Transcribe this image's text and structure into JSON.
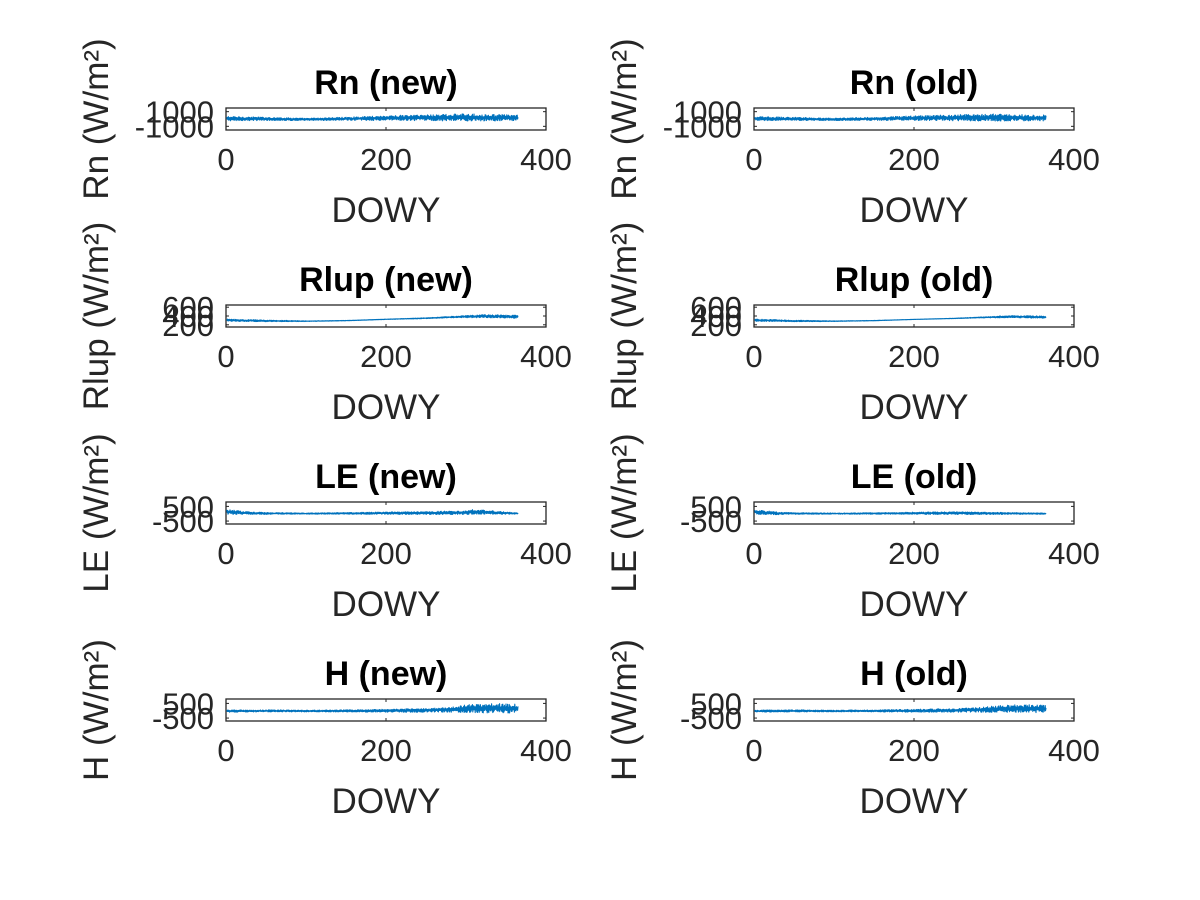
{
  "figure": {
    "background": "#ffffff",
    "line_color": "#0072bd"
  },
  "chart_data": [
    {
      "type": "line",
      "title": "Rn (new)",
      "xlabel": "DOWY",
      "ylabel": "Rn (W/m²)",
      "xlim": [
        0,
        400
      ],
      "xticks": [
        "0",
        "200",
        "400"
      ],
      "ylim": [
        -1500,
        1500
      ],
      "yticks": [
        {
          "v": -1000,
          "label": "-1000"
        },
        {
          "v": 1000,
          "label": "1000"
        }
      ],
      "series": [
        {
          "x": [
            1,
            365
          ],
          "envelope": {
            "day": [
              1,
              50,
              100,
              150,
              200,
              250,
              300,
              365
            ],
            "low": [
              -250,
              -200,
              -220,
              -180,
              -200,
              -250,
              -280,
              -250
            ],
            "high": [
              350,
              250,
              100,
              250,
              450,
              600,
              700,
              550
            ]
          }
        }
      ]
    },
    {
      "type": "line",
      "title": "Rn (old)",
      "xlabel": "DOWY",
      "ylabel": "Rn (W/m²)",
      "xlim": [
        0,
        400
      ],
      "xticks": [
        "0",
        "200",
        "400"
      ],
      "ylim": [
        -1500,
        1500
      ],
      "yticks": [
        {
          "v": -1000,
          "label": "-1000"
        },
        {
          "v": 1000,
          "label": "1000"
        }
      ],
      "series": [
        {
          "x": [
            1,
            365
          ],
          "envelope": {
            "day": [
              1,
              50,
              100,
              150,
              200,
              250,
              300,
              365
            ],
            "low": [
              -250,
              -200,
              -220,
              -180,
              -200,
              -250,
              -280,
              -250
            ],
            "high": [
              330,
              240,
              110,
              240,
              430,
              580,
              680,
              530
            ]
          }
        }
      ]
    },
    {
      "type": "line",
      "title": "Rlup (new)",
      "xlabel": "DOWY",
      "ylabel": "Rlup (W/m²)",
      "xlim": [
        0,
        400
      ],
      "xticks": [
        "0",
        "200",
        "400"
      ],
      "ylim": [
        150,
        650
      ],
      "yticks": [
        {
          "v": 200,
          "label": "200"
        },
        {
          "v": 400,
          "label": "400"
        },
        {
          "v": 600,
          "label": "600"
        }
      ],
      "series": [
        {
          "x": [
            1,
            365
          ],
          "envelope": {
            "day": [
              1,
              50,
              100,
              150,
              200,
              250,
              280,
              320,
              365
            ],
            "low": [
              280,
              270,
              275,
              290,
              320,
              340,
              360,
              360,
              350
            ],
            "high": [
              330,
              310,
              290,
              300,
              330,
              360,
              390,
              430,
              420
            ]
          }
        }
      ]
    },
    {
      "type": "line",
      "title": "Rlup (old)",
      "xlabel": "DOWY",
      "ylabel": "Rlup (W/m²)",
      "xlim": [
        0,
        400
      ],
      "xticks": [
        "0",
        "200",
        "400"
      ],
      "ylim": [
        150,
        650
      ],
      "yticks": [
        {
          "v": 200,
          "label": "200"
        },
        {
          "v": 400,
          "label": "400"
        },
        {
          "v": 600,
          "label": "600"
        }
      ],
      "series": [
        {
          "x": [
            1,
            365
          ],
          "envelope": {
            "day": [
              1,
              50,
              100,
              150,
              200,
              250,
              280,
              320,
              365
            ],
            "low": [
              280,
              270,
              275,
              290,
              320,
              340,
              355,
              360,
              350
            ],
            "high": [
              330,
              305,
              290,
              300,
              325,
              350,
              375,
              410,
              400
            ]
          }
        }
      ]
    },
    {
      "type": "line",
      "title": "LE (new)",
      "xlabel": "DOWY",
      "ylabel": "LE (W/m²)",
      "xlim": [
        0,
        400
      ],
      "xticks": [
        "0",
        "200",
        "400"
      ],
      "ylim": [
        -700,
        800
      ],
      "yticks": [
        {
          "v": -500,
          "label": "-500"
        },
        {
          "v": 500,
          "label": "500"
        }
      ],
      "series": [
        {
          "x": [
            1,
            365
          ],
          "envelope": {
            "day": [
              1,
              30,
              60,
              100,
              150,
              200,
              250,
              300,
              310,
              365
            ],
            "low": [
              -40,
              -60,
              -30,
              -30,
              -30,
              -40,
              -50,
              -50,
              -40,
              -30
            ],
            "high": [
              300,
              120,
              80,
              50,
              80,
              120,
              150,
              200,
              300,
              60
            ]
          }
        }
      ]
    },
    {
      "type": "line",
      "title": "LE (old)",
      "xlabel": "DOWY",
      "ylabel": "LE (W/m²)",
      "xlim": [
        0,
        400
      ],
      "xticks": [
        "0",
        "200",
        "400"
      ],
      "ylim": [
        -700,
        800
      ],
      "yticks": [
        {
          "v": -500,
          "label": "-500"
        },
        {
          "v": 500,
          "label": "500"
        }
      ],
      "series": [
        {
          "x": [
            1,
            365
          ],
          "envelope": {
            "day": [
              1,
              30,
              60,
              100,
              150,
              200,
              250,
              300,
              365
            ],
            "low": [
              -40,
              -60,
              -30,
              -30,
              -30,
              -40,
              -50,
              -50,
              -30
            ],
            "high": [
              280,
              110,
              70,
              50,
              70,
              110,
              130,
              100,
              50
            ]
          }
        }
      ]
    },
    {
      "type": "line",
      "title": "H (new)",
      "xlabel": "DOWY",
      "ylabel": "H (W/m²)",
      "xlim": [
        0,
        400
      ],
      "xticks": [
        "0",
        "200",
        "400"
      ],
      "ylim": [
        -700,
        800
      ],
      "yticks": [
        {
          "v": -500,
          "label": "-500"
        },
        {
          "v": 500,
          "label": "500"
        }
      ],
      "series": [
        {
          "x": [
            1,
            365
          ],
          "envelope": {
            "day": [
              1,
              50,
              100,
              150,
              200,
              250,
              280,
              300,
              330,
              365
            ],
            "low": [
              -100,
              -80,
              -80,
              -80,
              -100,
              -100,
              -100,
              -120,
              -150,
              -150
            ],
            "high": [
              50,
              60,
              40,
              60,
              100,
              150,
              250,
              400,
              500,
              450
            ]
          }
        }
      ]
    },
    {
      "type": "line",
      "title": "H (old)",
      "xlabel": "DOWY",
      "ylabel": "H (W/m²)",
      "xlim": [
        0,
        400
      ],
      "xticks": [
        "0",
        "200",
        "400"
      ],
      "ylim": [
        -700,
        800
      ],
      "yticks": [
        {
          "v": -500,
          "label": "-500"
        },
        {
          "v": 500,
          "label": "500"
        }
      ],
      "series": [
        {
          "x": [
            1,
            365
          ],
          "envelope": {
            "day": [
              1,
              50,
              100,
              150,
              200,
              250,
              280,
              300,
              330,
              365
            ],
            "low": [
              -100,
              -80,
              -80,
              -80,
              -100,
              -100,
              -100,
              -110,
              -130,
              -130
            ],
            "high": [
              50,
              60,
              40,
              60,
              100,
              150,
              220,
              320,
              420,
              380
            ]
          }
        }
      ]
    }
  ]
}
